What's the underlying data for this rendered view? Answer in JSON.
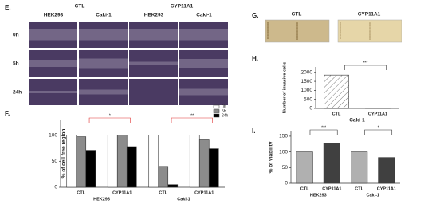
{
  "figure": {
    "panel_labels": [
      "E.",
      "F.",
      "G.",
      "H.",
      "I."
    ],
    "panel_e": {
      "conditions": [
        "CTL",
        "CYP11A1"
      ],
      "cell_lines": [
        "HEK293",
        "Caki-1",
        "HEK293",
        "Caki-1"
      ],
      "times": [
        "0h",
        "5h",
        "24h"
      ]
    },
    "panel_g": {
      "labels": [
        "CTL",
        "CYP11A1"
      ]
    }
  },
  "chart_data": [
    {
      "type": "bar",
      "y_label": "% of cell free region",
      "categories": [
        "CTL",
        "CYP11A1",
        "CTL",
        "CYP11A1"
      ],
      "groups": [
        "HEK293",
        "Caki-1"
      ],
      "series": [
        {
          "name": "0h",
          "color": "#ffffff",
          "values": [
            100,
            100,
            100,
            100
          ]
        },
        {
          "name": "5h",
          "color": "#8c8c8c",
          "values": [
            97,
            100,
            40,
            91
          ]
        },
        {
          "name": "24h",
          "color": "#000000",
          "values": [
            71,
            78,
            5,
            74
          ]
        }
      ],
      "ylim": [
        0,
        130
      ],
      "yticks": [
        0,
        50,
        100
      ],
      "annotations": [
        "*",
        "***"
      ],
      "annotation_color": "#e03030"
    },
    {
      "type": "bar",
      "y_label": "Number of invasive cells",
      "x_label": "Caki-1",
      "categories": [
        "CTL",
        "CYP11A1"
      ],
      "values": [
        1850,
        20
      ],
      "colors": [
        "#ffffff",
        "#ffffff"
      ],
      "hatched": [
        true,
        false
      ],
      "ylim": [
        0,
        2300
      ],
      "yticks": [
        0,
        500,
        1000,
        1500,
        2000
      ],
      "annotations": [
        "***"
      ],
      "annotation_color": "#333333"
    },
    {
      "type": "bar",
      "y_label": "% of viability",
      "categories": [
        "CTL",
        "CYP11A1",
        "CTL",
        "CYP11A1"
      ],
      "groups": [
        "HEK293",
        "Caki-1"
      ],
      "values": [
        100,
        128,
        100,
        82
      ],
      "colors": [
        "#b0b0b0",
        "#404040",
        "#b0b0b0",
        "#404040"
      ],
      "ylim": [
        0,
        165
      ],
      "yticks": [
        0,
        50,
        100,
        150
      ],
      "annotations": [
        "***",
        "*"
      ],
      "annotation_color": "#333333"
    }
  ]
}
